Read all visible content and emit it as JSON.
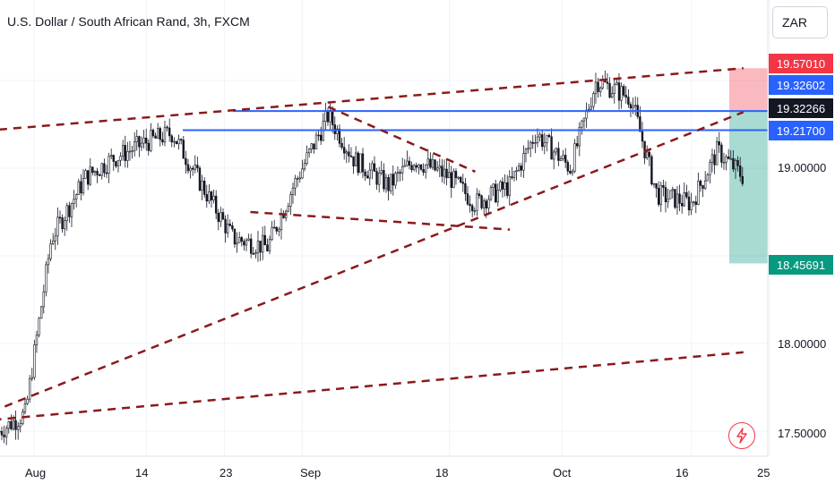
{
  "header": {
    "title": "U.S. Dollar / South African Rand, 3h, FXCM"
  },
  "currency_button": {
    "label": "ZAR"
  },
  "price_tags": [
    {
      "label": "19.57010",
      "color": "#f23645"
    },
    {
      "label": "19.32602",
      "color": "#2962ff"
    },
    {
      "label": "19.32266",
      "color": "#131722"
    },
    {
      "label": "19.21700",
      "color": "#2962ff"
    },
    {
      "label": "18.45691",
      "color": "#089981"
    }
  ],
  "price_axis": {
    "ticks": [
      "19.00000",
      "18.00000",
      "17.50000"
    ]
  },
  "time_axis": {
    "ticks": [
      "Aug",
      "14",
      "23",
      "Sep",
      "18",
      "Oct",
      "16",
      "25"
    ]
  },
  "icons": {
    "flash": "lightning-icon"
  },
  "chart_data": {
    "type": "candlestick",
    "title": "U.S. Dollar / South African Rand, 3h, FXCM",
    "symbol": "USDZAR",
    "timeframe": "3h",
    "source": "FXCM",
    "close_path": {
      "x": [
        "2023-07-28",
        "2023-07-31",
        "2023-08-03",
        "2023-08-07",
        "2023-08-10",
        "2023-08-14",
        "2023-08-17",
        "2023-08-21",
        "2023-08-24",
        "2023-08-28",
        "2023-08-31",
        "2023-09-04",
        "2023-09-07",
        "2023-09-11",
        "2023-09-14",
        "2023-09-18",
        "2023-09-21",
        "2023-09-25",
        "2023-09-28",
        "2023-10-02",
        "2023-10-05",
        "2023-10-09",
        "2023-10-12",
        "2023-10-16",
        "2023-10-19",
        "2023-10-22"
      ],
      "y": [
        17.5,
        17.6,
        18.6,
        18.95,
        19.05,
        19.15,
        19.2,
        18.85,
        18.6,
        18.55,
        18.9,
        19.3,
        19.05,
        18.9,
        19.05,
        18.95,
        18.8,
        18.9,
        19.2,
        19.0,
        19.5,
        19.4,
        18.85,
        18.8,
        19.1,
        18.95
      ]
    },
    "horizontal_levels": [
      19.32602,
      19.217
    ],
    "trade_box": {
      "stop": 19.5701,
      "entry": 19.32266,
      "target": 18.45691
    },
    "trendlines": [
      {
        "from": [
          "2023-07-23",
          19.2
        ],
        "to": [
          "2023-10-22",
          19.57
        ],
        "style": "dashed"
      },
      {
        "from": [
          "2023-07-24",
          17.55
        ],
        "to": [
          "2023-10-22",
          19.32
        ],
        "style": "dashed"
      },
      {
        "from": [
          "2023-07-24",
          17.55
        ],
        "to": [
          "2023-10-22",
          17.95
        ],
        "style": "dashed"
      },
      {
        "from": [
          "2023-08-26",
          18.75
        ],
        "to": [
          "2023-09-25",
          18.65
        ],
        "style": "dashed"
      },
      {
        "from": [
          "2023-09-04",
          19.35
        ],
        "to": [
          "2023-09-21",
          18.98
        ],
        "style": "dashed"
      }
    ],
    "ylim": [
      17.42,
      19.72
    ],
    "grid": true,
    "current_price": 19.32266
  }
}
